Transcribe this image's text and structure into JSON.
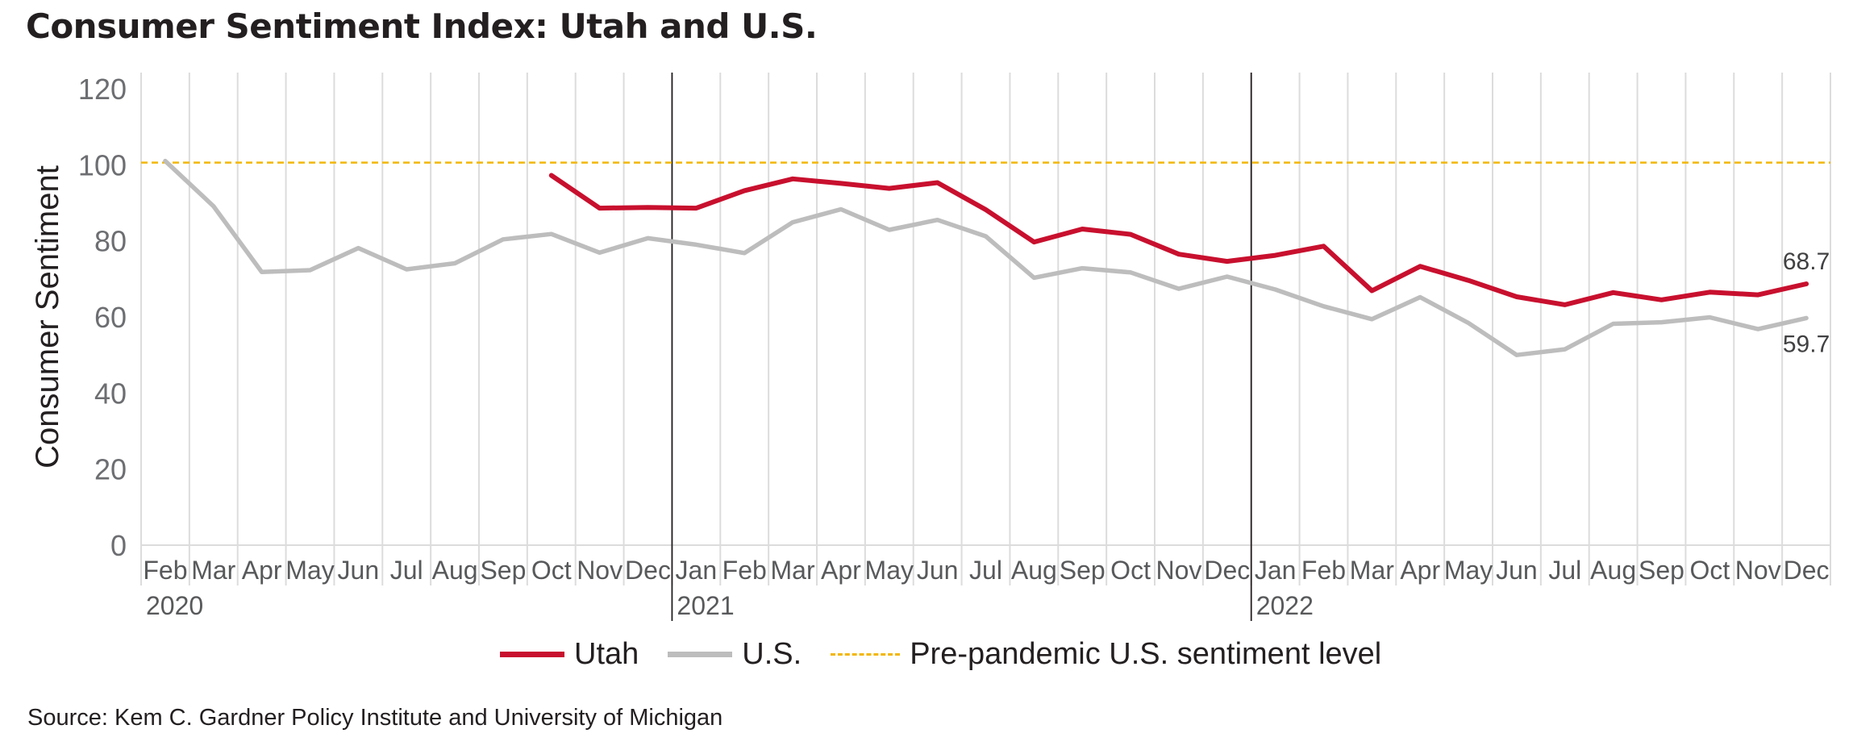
{
  "title": "Consumer Sentiment Index: Utah and U.S.",
  "source": "Source: Kem C. Gardner Policy Institute and University of Michigan",
  "chart_data": {
    "type": "line",
    "title": "Consumer Sentiment Index: Utah and U.S.",
    "xlabel": "",
    "ylabel": "Consumer Sentiment",
    "ylim": [
      0,
      120
    ],
    "yticks": [
      0,
      20,
      40,
      60,
      80,
      100,
      120
    ],
    "grid": "vertical",
    "legend_position": "bottom",
    "categories": [
      "Feb",
      "Mar",
      "Apr",
      "May",
      "Jun",
      "Jul",
      "Aug",
      "Sep",
      "Oct",
      "Nov",
      "Dec",
      "Jan",
      "Feb",
      "Mar",
      "Apr",
      "May",
      "Jun",
      "Jul",
      "Aug",
      "Sep",
      "Oct",
      "Nov",
      "Dec",
      "Jan",
      "Feb",
      "Mar",
      "Apr",
      "May",
      "Jun",
      "Jul",
      "Aug",
      "Sep",
      "Oct",
      "Nov",
      "Dec"
    ],
    "year_labels": [
      {
        "index": 0,
        "label": "2020"
      },
      {
        "index": 11,
        "label": "2021"
      },
      {
        "index": 23,
        "label": "2022"
      }
    ],
    "series": [
      {
        "name": "Utah",
        "color": "#c8102e",
        "values": [
          null,
          null,
          null,
          null,
          null,
          null,
          null,
          null,
          97.2,
          88.6,
          88.8,
          88.6,
          93.2,
          96.3,
          95.1,
          93.8,
          95.3,
          88.2,
          79.7,
          83.1,
          81.7,
          76.5,
          74.6,
          76.2,
          78.6,
          66.9,
          73.3,
          69.6,
          65.3,
          63.2,
          66.4,
          64.5,
          66.5,
          65.8,
          68.7
        ],
        "end_label": "68.7"
      },
      {
        "name": "U.S.",
        "color": "#bdbdbd",
        "values": [
          101,
          89.1,
          71.8,
          72.3,
          78.1,
          72.5,
          74.1,
          80.4,
          81.8,
          76.9,
          80.7,
          79.0,
          76.8,
          84.9,
          88.3,
          82.9,
          85.5,
          81.2,
          70.3,
          72.8,
          71.7,
          67.4,
          70.6,
          67.2,
          62.8,
          59.4,
          65.2,
          58.4,
          50.0,
          51.5,
          58.2,
          58.6,
          59.9,
          56.8,
          59.7
        ],
        "end_label": "59.7"
      }
    ],
    "reference_line": {
      "name": "Pre-pandemic U.S. sentiment level",
      "value": 101,
      "color": "#f2b705",
      "style": "dashed"
    },
    "year_separators": [
      11,
      23
    ]
  },
  "legend": [
    {
      "label": "Utah",
      "key": "utah"
    },
    {
      "label": "U.S.",
      "key": "us"
    },
    {
      "label": "Pre-pandemic U.S. sentiment level",
      "key": "pre"
    }
  ]
}
